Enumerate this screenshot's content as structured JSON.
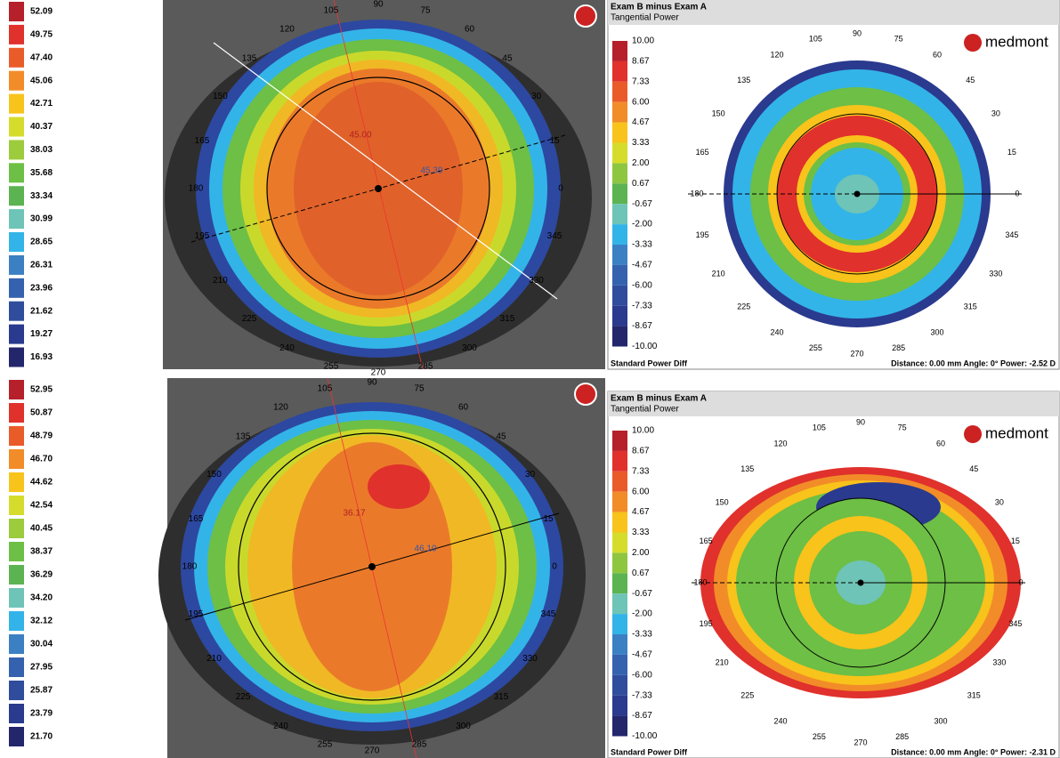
{
  "left_maps": [
    {
      "scale": [
        "52.09",
        "49.75",
        "47.40",
        "45.06",
        "42.71",
        "40.37",
        "38.03",
        "35.68",
        "33.34",
        "30.99",
        "28.65",
        "26.31",
        "23.96",
        "21.62",
        "19.27",
        "16.93"
      ],
      "annotations": [
        "45.00",
        "45.39"
      ]
    },
    {
      "scale": [
        "52.95",
        "50.87",
        "48.79",
        "46.70",
        "44.62",
        "42.54",
        "40.45",
        "38.37",
        "36.29",
        "34.20",
        "32.12",
        "30.04",
        "27.95",
        "25.87",
        "23.79",
        "21.70"
      ],
      "annotations": [
        "36.17",
        "46.10"
      ]
    }
  ],
  "right_maps": [
    {
      "title": "Exam B minus Exam A",
      "subtitle": "Tangential Power",
      "brand": "medmont",
      "scale": [
        "10.00",
        "8.67",
        "7.33",
        "6.00",
        "4.67",
        "3.33",
        "2.00",
        "0.67",
        "-0.67",
        "-2.00",
        "-3.33",
        "-4.67",
        "-6.00",
        "-7.33",
        "-8.67",
        "-10.00"
      ],
      "footer_left": "Standard Power Diff",
      "footer_right": "Distance: 0.00 mm Angle: 0° Power: -2.52 D"
    },
    {
      "title": "Exam B minus Exam A",
      "subtitle": "Tangential Power",
      "brand": "medmont",
      "scale": [
        "10.00",
        "8.67",
        "7.33",
        "6.00",
        "4.67",
        "3.33",
        "2.00",
        "0.67",
        "-0.67",
        "-2.00",
        "-3.33",
        "-4.67",
        "-6.00",
        "-7.33",
        "-8.67",
        "-10.00"
      ],
      "footer_left": "Standard Power Diff",
      "footer_right": "Distance: 0.00 mm Angle: 0° Power: -2.31 D"
    }
  ],
  "angles": [
    "0",
    "15",
    "30",
    "45",
    "60",
    "75",
    "90",
    "105",
    "120",
    "135",
    "150",
    "165",
    "180",
    "195",
    "210",
    "225",
    "240",
    "255",
    "270",
    "285",
    "300",
    "315",
    "330",
    "345"
  ]
}
